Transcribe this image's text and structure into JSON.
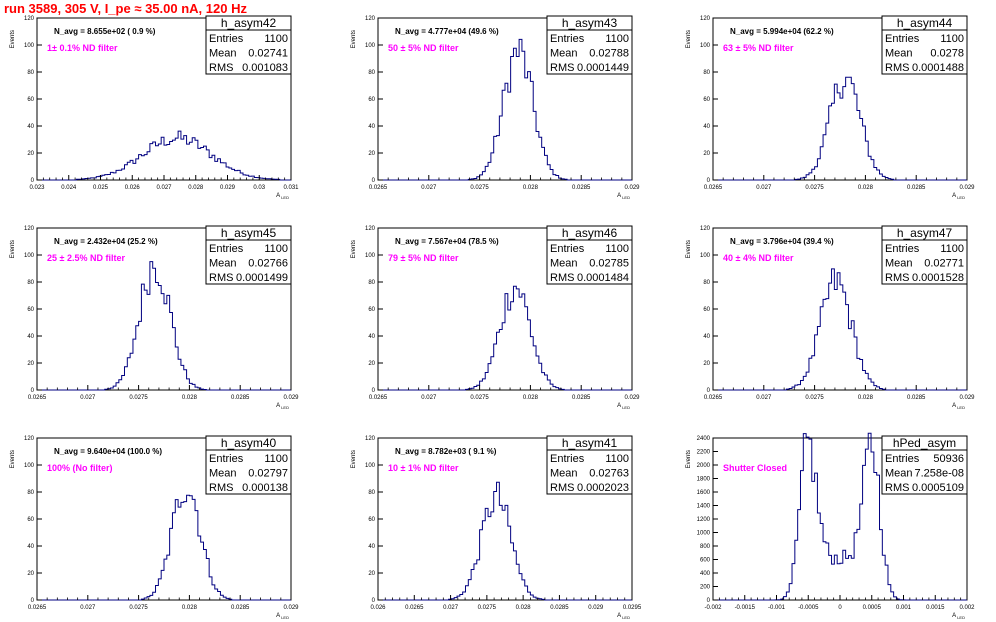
{
  "canvas_title": "run 3589,   305 V, I_pe ≈ 35.00 nA, 120 Hz",
  "chart_data": [
    {
      "type": "histogram",
      "name": "h_asym42",
      "title": "h_asym42",
      "entries": "1100",
      "mean": "0.02741",
      "rms": "0.001083",
      "annotation": "N_avg = 8.655e+02 ( 0.9 %)",
      "filter_label": "1± 0.1% ND filter",
      "xlabel": "A_LED",
      "ylabel": "Events",
      "xlim": [
        0.023,
        0.031
      ],
      "ylim": [
        0,
        120
      ],
      "xticks": [
        0.023,
        0.024,
        0.025,
        0.026,
        0.027,
        0.028,
        0.029,
        0.03,
        0.031
      ],
      "xtick_labels": [
        "0.023",
        "0.024",
        "0.025",
        "0.026",
        "0.027",
        "0.028",
        "0.029",
        "0.03",
        "0.031"
      ],
      "yticks": [
        0,
        20,
        40,
        60,
        80,
        100,
        120
      ],
      "ytick_labels": [
        "0",
        "20",
        "40",
        "60",
        "80",
        "100",
        "120"
      ],
      "mu": 0.02741,
      "sigma": 0.001083,
      "peak": 31,
      "bimodal": false
    },
    {
      "type": "histogram",
      "name": "h_asym43",
      "title": "h_asym43",
      "entries": "1100",
      "mean": "0.02788",
      "rms": "0.0001449",
      "annotation": "N_avg = 4.777e+04 (49.6 %)",
      "filter_label": "50 ± 5% ND filter",
      "xlabel": "A_LED",
      "ylabel": "Events",
      "xlim": [
        0.0265,
        0.029
      ],
      "ylim": [
        0,
        120
      ],
      "xticks": [
        0.0265,
        0.027,
        0.0275,
        0.028,
        0.0285,
        0.029
      ],
      "xtick_labels": [
        "0.0265",
        "0.027",
        "0.0275",
        "0.028",
        "0.0285",
        "0.029"
      ],
      "yticks": [
        0,
        20,
        40,
        60,
        80,
        100,
        120
      ],
      "ytick_labels": [
        "0",
        "20",
        "40",
        "60",
        "80",
        "100",
        "120"
      ],
      "mu": 0.02788,
      "sigma": 0.0001449,
      "peak": 95,
      "bimodal": false
    },
    {
      "type": "histogram",
      "name": "h_asym44",
      "title": "h_asym44",
      "entries": "1100",
      "mean": "0.0278",
      "rms": "0.0001488",
      "annotation": "N_avg = 5.994e+04 (62.2 %)",
      "filter_label": "63 ± 5% ND filter",
      "xlabel": "A_LED",
      "ylabel": "Events",
      "xlim": [
        0.0265,
        0.029
      ],
      "ylim": [
        0,
        120
      ],
      "xticks": [
        0.0265,
        0.027,
        0.0275,
        0.028,
        0.0285,
        0.029
      ],
      "xtick_labels": [
        "0.0265",
        "0.027",
        "0.0275",
        "0.028",
        "0.0285",
        "0.029"
      ],
      "yticks": [
        0,
        20,
        40,
        60,
        80,
        100,
        120
      ],
      "ytick_labels": [
        "0",
        "20",
        "40",
        "60",
        "80",
        "100",
        "120"
      ],
      "mu": 0.0278,
      "sigma": 0.0001488,
      "peak": 76,
      "bimodal": false
    },
    {
      "type": "histogram",
      "name": "h_asym45",
      "title": "h_asym45",
      "entries": "1100",
      "mean": "0.02766",
      "rms": "0.0001499",
      "annotation": "N_avg = 2.432e+04 (25.2 %)",
      "filter_label": "25 ± 2.5% ND filter",
      "xlabel": "A_LED",
      "ylabel": "Events",
      "xlim": [
        0.0265,
        0.029
      ],
      "ylim": [
        0,
        120
      ],
      "xticks": [
        0.0265,
        0.027,
        0.0275,
        0.028,
        0.0285,
        0.029
      ],
      "xtick_labels": [
        "0.0265",
        "0.027",
        "0.0275",
        "0.028",
        "0.0285",
        "0.029"
      ],
      "yticks": [
        0,
        20,
        40,
        60,
        80,
        100,
        120
      ],
      "ytick_labels": [
        "0",
        "20",
        "40",
        "60",
        "80",
        "100",
        "120"
      ],
      "mu": 0.02766,
      "sigma": 0.0001499,
      "peak": 94,
      "bimodal": false
    },
    {
      "type": "histogram",
      "name": "h_asym46",
      "title": "h_asym46",
      "entries": "1100",
      "mean": "0.02785",
      "rms": "0.0001484",
      "annotation": "N_avg = 7.567e+04 (78.5 %)",
      "filter_label": "79 ± 5% ND filter",
      "xlabel": "A_LED",
      "ylabel": "Events",
      "xlim": [
        0.0265,
        0.029
      ],
      "ylim": [
        0,
        120
      ],
      "xticks": [
        0.0265,
        0.027,
        0.0275,
        0.028,
        0.0285,
        0.029
      ],
      "xtick_labels": [
        "0.0265",
        "0.027",
        "0.0275",
        "0.028",
        "0.0285",
        "0.029"
      ],
      "yticks": [
        0,
        20,
        40,
        60,
        80,
        100,
        120
      ],
      "ytick_labels": [
        "0",
        "20",
        "40",
        "60",
        "80",
        "100",
        "120"
      ],
      "mu": 0.02785,
      "sigma": 0.0001484,
      "peak": 77,
      "bimodal": false
    },
    {
      "type": "histogram",
      "name": "h_asym47",
      "title": "h_asym47",
      "entries": "1100",
      "mean": "0.02771",
      "rms": "0.0001528",
      "annotation": "N_avg = 3.796e+04 (39.4 %)",
      "filter_label": "40 ± 4% ND filter",
      "xlabel": "A_LED",
      "ylabel": "Events",
      "xlim": [
        0.0265,
        0.029
      ],
      "ylim": [
        0,
        120
      ],
      "xticks": [
        0.0265,
        0.027,
        0.0275,
        0.028,
        0.0285,
        0.029
      ],
      "xtick_labels": [
        "0.0265",
        "0.027",
        "0.0275",
        "0.028",
        "0.0285",
        "0.029"
      ],
      "yticks": [
        0,
        20,
        40,
        60,
        80,
        100,
        120
      ],
      "ytick_labels": [
        "0",
        "20",
        "40",
        "60",
        "80",
        "100",
        "120"
      ],
      "mu": 0.02771,
      "sigma": 0.0001528,
      "peak": 80,
      "bimodal": false
    },
    {
      "type": "histogram",
      "name": "h_asym40",
      "title": "h_asym40",
      "entries": "1100",
      "mean": "0.02797",
      "rms": "0.000138",
      "annotation": "N_avg = 9.640e+04 (100.0 %)",
      "filter_label": "100% (No filter)",
      "xlabel": "A_LED",
      "ylabel": "Events",
      "xlim": [
        0.0265,
        0.029
      ],
      "ylim": [
        0,
        120
      ],
      "xticks": [
        0.0265,
        0.027,
        0.0275,
        0.028,
        0.0285,
        0.029
      ],
      "xtick_labels": [
        "0.0265",
        "0.027",
        "0.0275",
        "0.028",
        "0.0285",
        "0.029"
      ],
      "yticks": [
        0,
        20,
        40,
        60,
        80,
        100,
        120
      ],
      "ytick_labels": [
        "0",
        "20",
        "40",
        "60",
        "80",
        "100",
        "120"
      ],
      "mu": 0.02797,
      "sigma": 0.000138,
      "peak": 86,
      "bimodal": false
    },
    {
      "type": "histogram",
      "name": "h_asym41",
      "title": "h_asym41",
      "entries": "1100",
      "mean": "0.02763",
      "rms": "0.0002023",
      "annotation": "N_avg = 8.782e+03 ( 9.1 %)",
      "filter_label": "10 ± 1% ND filter",
      "xlabel": "A_LED",
      "ylabel": "Events",
      "xlim": [
        0.026,
        0.0295
      ],
      "ylim": [
        0,
        120
      ],
      "xticks": [
        0.026,
        0.0265,
        0.027,
        0.0275,
        0.028,
        0.0285,
        0.029,
        0.0295
      ],
      "xtick_labels": [
        "0.026",
        "0.0265",
        "0.027",
        "0.0275",
        "0.028",
        "0.0285",
        "0.029",
        "0.0295"
      ],
      "yticks": [
        0,
        20,
        40,
        60,
        80,
        100,
        120
      ],
      "ytick_labels": [
        "0",
        "20",
        "40",
        "60",
        "80",
        "100",
        "120"
      ],
      "mu": 0.02763,
      "sigma": 0.0002023,
      "peak": 76,
      "bimodal": false
    },
    {
      "type": "histogram",
      "name": "hPed_asym",
      "title": "hPed_asym",
      "entries": "50936",
      "mean": "7.258e-08",
      "rms": "0.0005109",
      "annotation": "",
      "filter_label": "Shutter Closed",
      "xlabel": "A_LED",
      "ylabel": "Events",
      "xlim": [
        -0.002,
        0.002
      ],
      "ylim": [
        0,
        2400
      ],
      "xticks": [
        -0.002,
        -0.0015,
        -0.001,
        -0.0005,
        0,
        0.0005,
        0.001,
        0.0015,
        0.002
      ],
      "xtick_labels": [
        "-0.002",
        "-0.0015",
        "-0.001",
        "-0.0005",
        "0",
        "0.0005",
        "0.001",
        "0.0015",
        "0.002"
      ],
      "yticks": [
        0,
        200,
        400,
        600,
        800,
        1000,
        1200,
        1400,
        1600,
        1800,
        2000,
        2200,
        2400
      ],
      "ytick_labels": [
        "0",
        "200",
        "400",
        "600",
        "800",
        "1000",
        "1200",
        "1400",
        "1600",
        "1800",
        "2000",
        "2200",
        "2400"
      ],
      "peak_a": -0.0005,
      "peak_b": 0.0005,
      "peak_sigma": 0.00013,
      "peak": 2300,
      "valley": 620,
      "bimodal": true
    }
  ],
  "stat_labels": {
    "entries": "Entries",
    "mean": "Mean",
    "rms": "RMS"
  },
  "colors": {
    "line": "#000080",
    "title": "#ff0000",
    "filter": "#ff00ff"
  }
}
